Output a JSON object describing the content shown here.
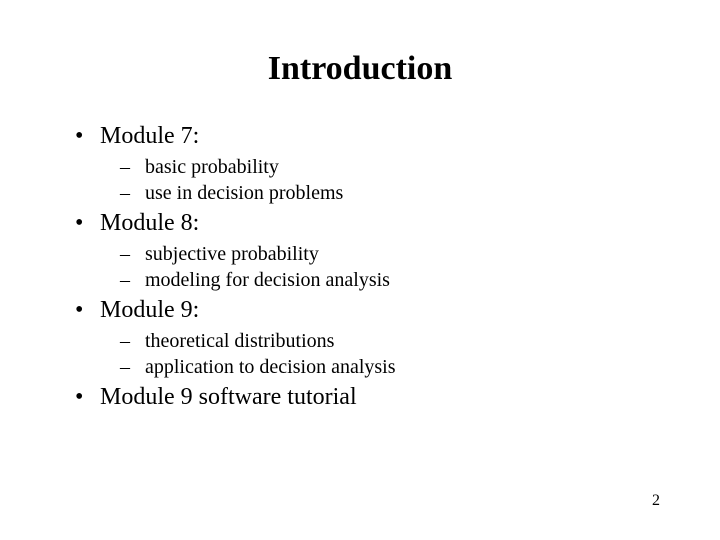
{
  "title": "Introduction",
  "modules": [
    {
      "label": "Module 7:",
      "items": [
        "basic probability",
        "use in decision problems"
      ]
    },
    {
      "label": "Module 8:",
      "items": [
        "subjective probability",
        "modeling for decision analysis"
      ]
    },
    {
      "label": "Module 9:",
      "items": [
        "theoretical distributions",
        "application to decision analysis"
      ]
    },
    {
      "label": "Module 9 software tutorial",
      "items": []
    }
  ],
  "page_number": "2"
}
